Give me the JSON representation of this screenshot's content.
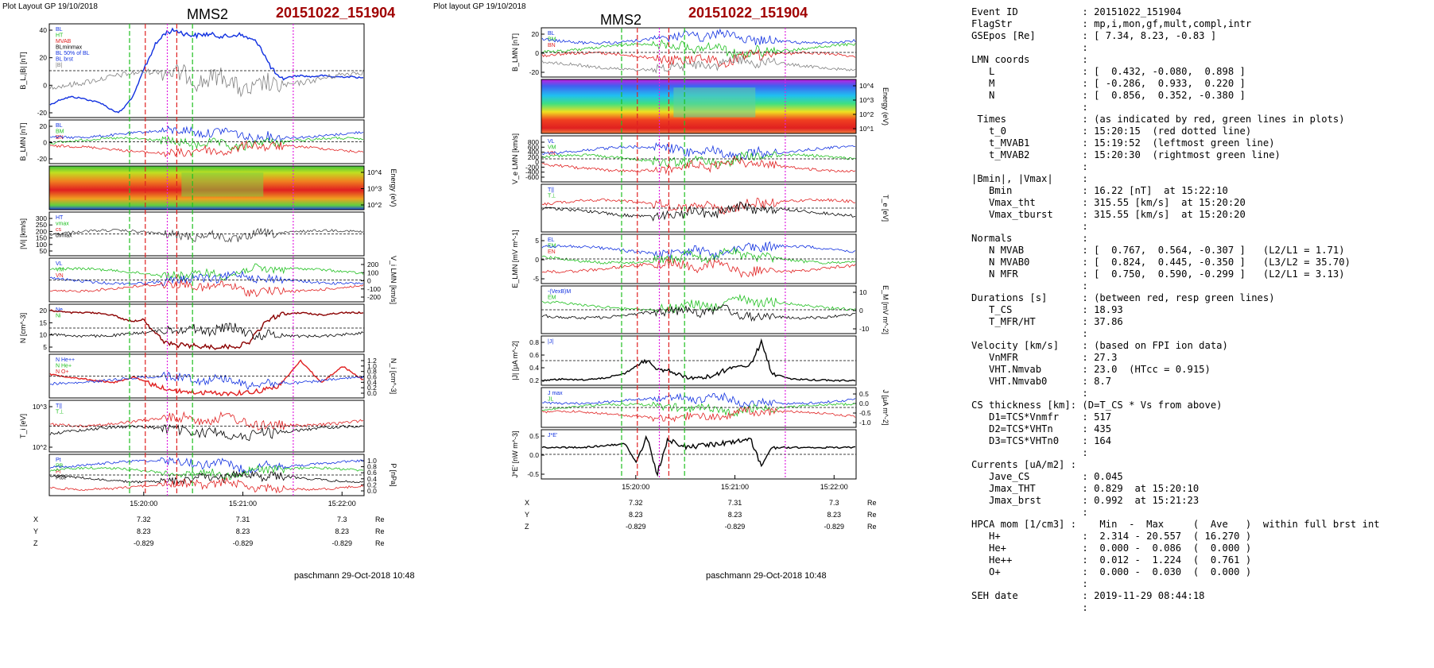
{
  "left": {
    "header": "Plot Layout GP 19/10/2018",
    "title": "MMS2",
    "event": "20151022_151904",
    "footer": "paschmann 29-Oct-2018 10:48",
    "time_ticks": [
      "15:20:00",
      "15:21:00",
      "15:22:00"
    ],
    "coord_rows": [
      {
        "name": "X",
        "values": [
          "7.32",
          "7.31",
          "7.3"
        ],
        "unit": "Re"
      },
      {
        "name": "Y",
        "values": [
          "8.23",
          "8.23",
          "8.23"
        ],
        "unit": "Re"
      },
      {
        "name": "Z",
        "values": [
          "-0.829",
          "-0.829",
          "-0.829"
        ],
        "unit": "Re"
      }
    ],
    "panels": [
      {
        "id": "bl",
        "ylabel": "B_L,|B| [nT]",
        "ticks": [
          "40",
          "20",
          "0",
          "-20"
        ],
        "legend": [
          "BL",
          "HT",
          "MVAB",
          "BLminmax",
          "BL 50% of BL",
          "BL brst",
          "|B|"
        ]
      },
      {
        "id": "blmn",
        "ylabel": "B_LMN [nT]",
        "ticks": [
          "20",
          "0",
          "-20"
        ],
        "legend": [
          "BL",
          "BM",
          "BN"
        ]
      },
      {
        "id": "spec",
        "ylabel": "Energy (eV)",
        "ticks": [
          "10^4",
          "10^3",
          "10^2"
        ],
        "legend": []
      },
      {
        "id": "vi",
        "ylabel": "|Vi| [km/s]",
        "ticks": [
          "300",
          "250",
          "200",
          "150",
          "100",
          "50"
        ],
        "legend": [
          "HT",
          "vmax",
          "cs",
          "dvmax"
        ]
      },
      {
        "id": "vilmn",
        "ylabel": "V_i LMN [km/s]",
        "ticks": [
          "200",
          "100",
          "0",
          "-100",
          "-200"
        ],
        "legend": [
          "VL",
          "VM",
          "VN"
        ]
      },
      {
        "id": "n",
        "ylabel": "N [cm^-3]",
        "ticks": [
          "20",
          "15",
          "10",
          "5"
        ],
        "legend": [
          "Ne",
          "Ni"
        ]
      },
      {
        "id": "ni",
        "ylabel": "N_i [cm^-3]",
        "ticks": [
          "1.2",
          "1.0",
          "0.8",
          "0.6",
          "0.4",
          "0.2",
          "0.0"
        ],
        "legend": [
          "N He++",
          "N He+",
          "N O+"
        ]
      },
      {
        "id": "ti",
        "ylabel": "T_i [eV]",
        "ticks": [
          "10^3",
          "10^2"
        ],
        "legend": [
          "T||",
          "T⊥"
        ]
      },
      {
        "id": "p",
        "ylabel": "P [nPa]",
        "ticks": [
          "1.0",
          "0.8",
          "0.6",
          "0.4",
          "0.2",
          "0.0"
        ],
        "legend": [
          "Pt",
          "PB",
          "Pi",
          "Ptot"
        ]
      }
    ]
  },
  "mid": {
    "header": "Plot layout GP 19/10/2018",
    "title": "MMS2",
    "event": "20151022_151904",
    "footer": "paschmann 29-Oct-2018 10:48",
    "time_ticks": [
      "15:20:00",
      "15:21:00",
      "15:22:00"
    ],
    "coord_rows": [
      {
        "name": "X",
        "values": [
          "7.32",
          "7.31",
          "7.3"
        ],
        "unit": "Re"
      },
      {
        "name": "Y",
        "values": [
          "8.23",
          "8.23",
          "8.23"
        ],
        "unit": "Re"
      },
      {
        "name": "Z",
        "values": [
          "-0.829",
          "-0.829",
          "-0.829"
        ],
        "unit": "Re"
      }
    ],
    "panels": [
      {
        "id": "blmn",
        "ylabel": "B_LMN [nT]",
        "ticks": [
          "20",
          "0",
          "-20"
        ],
        "legend": [
          "BL",
          "BM",
          "BN"
        ]
      },
      {
        "id": "spec",
        "ylabel": "Energy (eV)",
        "ticks": [
          "10^4",
          "10^3",
          "10^2",
          "10^1"
        ],
        "legend": []
      },
      {
        "id": "ve",
        "ylabel": "V_e LMN [km/s]",
        "ticks": [
          "800",
          "600",
          "400",
          "200",
          "0",
          "-200",
          "-400",
          "-600"
        ],
        "legend": [
          "VL",
          "VM",
          "VN"
        ]
      },
      {
        "id": "te",
        "ylabel": "T_e [eV]",
        "ticks": [],
        "legend": [
          "T||",
          "T⊥"
        ]
      },
      {
        "id": "elmn",
        "ylabel": "E_LMN [mV m^-1]",
        "ticks": [
          "5",
          "0",
          "-5"
        ],
        "legend": [
          "EL",
          "EM",
          "EN"
        ]
      },
      {
        "id": "em",
        "ylabel": "E_M [mV m^-2]",
        "ticks": [
          "10",
          "0",
          "-10"
        ],
        "legend": [
          "-(VexB)M",
          "EM"
        ]
      },
      {
        "id": "jabs",
        "ylabel": "|J| [μA m^-2]",
        "ticks": [
          "0.8",
          "0.6",
          "0.4",
          "0.2"
        ],
        "legend": [
          "|J|"
        ]
      },
      {
        "id": "j",
        "ylabel": "J [μA m^-2]",
        "ticks": [
          "0.5",
          "0.0",
          "-0.5",
          "-1.0"
        ],
        "legend": [
          "J max",
          "JL"
        ]
      },
      {
        "id": "je",
        "ylabel": "J*E' [nW m^-3]",
        "ticks": [
          "0.5",
          "0.0",
          "-0.5"
        ],
        "legend": [
          "J*E'"
        ]
      }
    ]
  },
  "summary_lines": [
    "Event ID           : 20151022_151904",
    "FlagStr            : mp,i,mon,gf,mult,compl,intr",
    "GSEpos [Re]        : [ 7.34, 8.23, -0.83 ]",
    "                   :",
    "LMN coords         :",
    "   L               : [  0.432, -0.080,  0.898 ]",
    "   M               : [ -0.286,  0.933,  0.220 ]",
    "   N               : [  0.856,  0.352, -0.380 ]",
    "                   :",
    " Times             : (as indicated by red, green lines in plots)",
    "   t_0             : 15:20:15  (red dotted line)",
    "   t_MVAB1         : 15:19:52  (leftmost green line)",
    "   t_MVAB2         : 15:20:30  (rightmost green line)",
    "                   :",
    "|Bmin|, |Vmax|     :",
    "   Bmin            : 16.22 [nT]  at 15:22:10",
    "   Vmax_tht        : 315.55 [km/s]  at 15:20:20",
    "   Vmax_tburst     : 315.55 [km/s]  at 15:20:20",
    "                   :",
    "Normals            :",
    "   N MVAB          : [  0.767,  0.564, -0.307 ]   (L2/L1 = 1.71)",
    "   N MVAB0         : [  0.824,  0.445, -0.350 ]   (L3/L2 = 35.70)",
    "   N MFR           : [  0.750,  0.590, -0.299 ]   (L2/L1 = 3.13)",
    "                   :",
    "Durations [s]      : (between red, resp green lines)",
    "   T_CS            : 18.93",
    "   T_MFR/HT        : 37.86",
    "                   :",
    "Velocity [km/s]    : (based on FPI ion data)",
    "   VnMFR           : 27.3",
    "   VHT.Nmvab       : 23.0  (HTcc = 0.915)",
    "   VHT.Nmvab0      : 8.7",
    "                   :",
    "CS thickness [km]: (D=T_CS * Vs from above)",
    "   D1=TCS*Vnmfr    : 517",
    "   D2=TCS*VHTn     : 435",
    "   D3=TCS*VHTn0    : 164",
    "                   :",
    "Currents [uA/m2] :",
    "   Jave_CS         : 0.045",
    "   Jmax_THT        : 0.829  at 15:20:10",
    "   Jmax_brst       : 0.992  at 15:21:23",
    "                   :",
    "HPCA mom [1/cm3] :    Min  -  Max     (  Ave   )  within full brst int",
    "   H+              :  2.314 - 20.557  ( 16.270 )",
    "   He+             :  0.000 -  0.086  (  0.000 )",
    "   He++            :  0.012 -  1.224  (  0.761 )",
    "   O+              :  0.000 -  0.030  (  0.000 )",
    "                   :",
    "SEH date           : 2019-11-29 08:44:18",
    "                   :"
  ],
  "colors": {
    "red": "#e02020",
    "green": "#20c020",
    "blue": "#1030e0",
    "black": "#000000",
    "magenta": "#e020e0",
    "title_red": "#a00000"
  },
  "chart_data": [
    {
      "type": "line",
      "title": "MMS2",
      "subtitle": "20151022_151904",
      "x_ticks": [
        "15:20:00",
        "15:21:00",
        "15:22:00"
      ],
      "panels": [
        "B_L,|B| [nT]",
        "B_LMN [nT]",
        "Energy (eV)",
        "|Vi| [km/s]",
        "V_i LMN [km/s]",
        "N [cm^-3]",
        "N_i [cm^-3]",
        "T_i [eV]",
        "P [nPa]"
      ],
      "series": [
        {
          "name": "BL brst",
          "panel": "B_L,|B| [nT]",
          "x": [
            0,
            10,
            20,
            30,
            40,
            50,
            55,
            60,
            65,
            70,
            80,
            90,
            100,
            110,
            120,
            130,
            140,
            150,
            160,
            170,
            180,
            190,
            200,
            210,
            220,
            230,
            240,
            250,
            260,
            270,
            280,
            290,
            300
          ],
          "values": [
            -22,
            -18,
            -16,
            -17,
            -19,
            -21,
            -24,
            -26,
            -28,
            -25,
            -15,
            5,
            22,
            32,
            34,
            31,
            30,
            31,
            30,
            29,
            31,
            28,
            24,
            8,
            -3,
            -1,
            0,
            -1,
            0,
            -1,
            -1,
            -1,
            -2
          ]
        },
        {
          "name": "|B|",
          "panel": "B_L,|B| [nT]",
          "x": [
            0,
            20,
            40,
            60,
            70,
            80,
            90,
            100,
            110,
            120,
            140,
            160,
            180,
            190,
            200,
            210,
            220,
            240,
            260,
            280,
            300
          ],
          "values": [
            30,
            31,
            32,
            33,
            34,
            34,
            30,
            28,
            33,
            36,
            36,
            37,
            38,
            37,
            36,
            32,
            25,
            23,
            22,
            20,
            18
          ]
        },
        {
          "name": "Ne",
          "panel": "N [cm^-3]",
          "x": [
            0,
            20,
            40,
            60,
            70,
            80,
            90,
            100,
            110,
            120,
            140,
            160,
            180,
            190,
            200,
            210,
            220,
            240,
            260,
            280,
            300
          ],
          "values": [
            19,
            18,
            18,
            17,
            15,
            14,
            15,
            9,
            4,
            3,
            2.5,
            2,
            2.5,
            4,
            10,
            15,
            17,
            18,
            17,
            18,
            18
          ]
        },
        {
          "name": "N He++",
          "panel": "N_i [cm^-3]",
          "x": [
            0,
            20,
            40,
            60,
            80,
            100,
            120,
            140,
            160,
            180,
            200,
            220,
            240,
            260,
            280,
            300
          ],
          "values": [
            0.7,
            0.6,
            0.5,
            0.4,
            0.6,
            0.3,
            0.1,
            0.05,
            0.02,
            0.02,
            0.1,
            0.3,
            1.2,
            0.4,
            1.0,
            0.5
          ]
        }
      ]
    },
    {
      "type": "line",
      "title": "MMS2",
      "subtitle": "20151022_151904",
      "x_ticks": [
        "15:20:00",
        "15:21:00",
        "15:22:00"
      ],
      "panels": [
        "B_LMN [nT]",
        "Energy (eV)",
        "V_e LMN [km/s]",
        "T_e [eV]",
        "E_LMN [mV m^-1]",
        "E_M [mV m^-2]",
        "|J| [μA m^-2]",
        "J [μA m^-2]",
        "J*E' [nW m^-3]"
      ],
      "series": [
        {
          "name": "|J|",
          "panel": "|J| [μA m^-2]",
          "x": [
            0,
            20,
            40,
            60,
            80,
            90,
            100,
            110,
            120,
            140,
            160,
            180,
            200,
            210,
            220,
            240,
            260,
            280,
            300
          ],
          "values": [
            0.05,
            0.08,
            0.06,
            0.1,
            0.2,
            0.35,
            0.45,
            0.3,
            0.25,
            0.1,
            0.12,
            0.3,
            0.4,
            0.83,
            0.2,
            0.08,
            0.06,
            0.05,
            0.05
          ]
        },
        {
          "name": "J*E'",
          "panel": "J*E' [nW m^-3]",
          "x": [
            0,
            40,
            80,
            90,
            100,
            110,
            120,
            140,
            200,
            210,
            220,
            260,
            300
          ],
          "values": [
            0,
            0,
            0.1,
            -0.4,
            0.3,
            -0.7,
            0.2,
            0,
            0.2,
            -0.5,
            0,
            0,
            0
          ]
        }
      ]
    }
  ]
}
